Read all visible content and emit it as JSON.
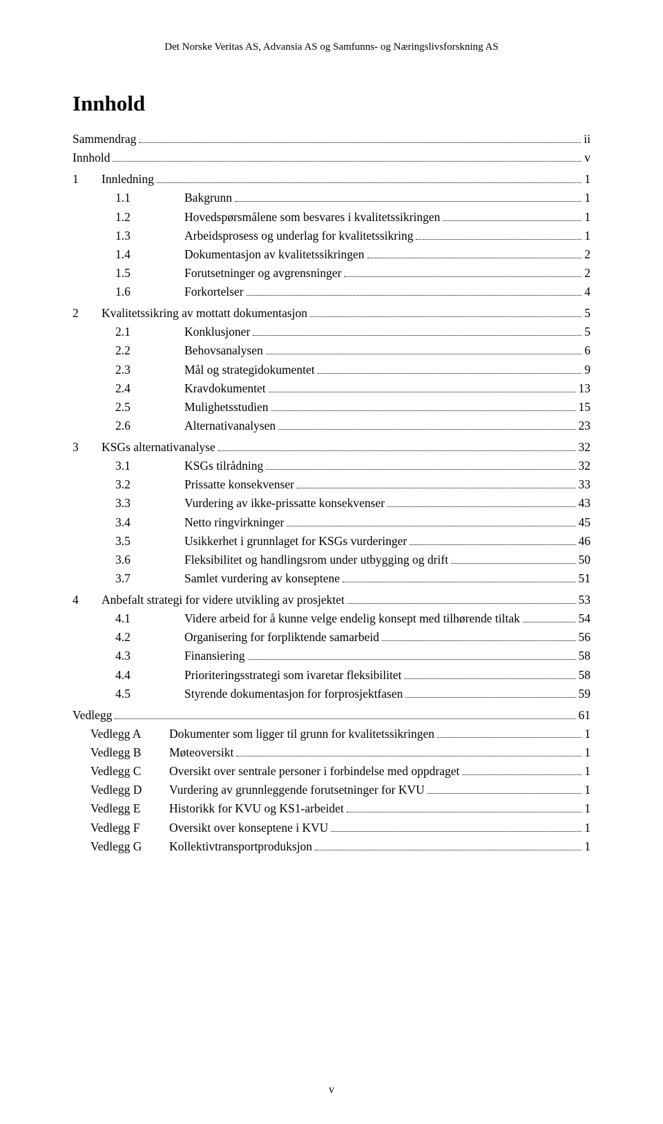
{
  "header": "Det Norske Veritas AS, Advansia AS og Samfunns- og Næringslivsforskning AS",
  "title": "Innhold",
  "footer": "v",
  "entries": [
    {
      "indent": "plain",
      "num": "",
      "label": "Sammendrag",
      "page": "ii"
    },
    {
      "indent": "plain",
      "num": "",
      "label": "Innhold",
      "page": "v"
    },
    {
      "indent": "0",
      "num": "1",
      "label": "Innledning",
      "page": "1"
    },
    {
      "indent": "1",
      "num": "1.1",
      "label": "Bakgrunn",
      "page": "1"
    },
    {
      "indent": "1",
      "num": "1.2",
      "label": "Hovedspørsmålene som besvares i kvalitetssikringen",
      "page": "1"
    },
    {
      "indent": "1",
      "num": "1.3",
      "label": "Arbeidsprosess og underlag for kvalitetssikring",
      "page": "1"
    },
    {
      "indent": "1",
      "num": "1.4",
      "label": "Dokumentasjon av kvalitetssikringen",
      "page": "2"
    },
    {
      "indent": "1",
      "num": "1.5",
      "label": "Forutsetninger og avgrensninger",
      "page": "2"
    },
    {
      "indent": "1",
      "num": "1.6",
      "label": "Forkortelser",
      "page": "4"
    },
    {
      "indent": "0",
      "num": "2",
      "label": "Kvalitetssikring av mottatt dokumentasjon",
      "page": "5"
    },
    {
      "indent": "1",
      "num": "2.1",
      "label": "Konklusjoner",
      "page": "5"
    },
    {
      "indent": "1",
      "num": "2.2",
      "label": "Behovsanalysen",
      "page": "6"
    },
    {
      "indent": "1",
      "num": "2.3",
      "label": "Mål og strategidokumentet",
      "page": "9"
    },
    {
      "indent": "1",
      "num": "2.4",
      "label": "Kravdokumentet",
      "page": "13"
    },
    {
      "indent": "1",
      "num": "2.5",
      "label": "Mulighetsstudien",
      "page": "15"
    },
    {
      "indent": "1",
      "num": "2.6",
      "label": "Alternativanalysen",
      "page": "23"
    },
    {
      "indent": "0",
      "num": "3",
      "label": "KSGs alternativanalyse",
      "page": "32"
    },
    {
      "indent": "1",
      "num": "3.1",
      "label": "KSGs tilrådning",
      "page": "32"
    },
    {
      "indent": "1",
      "num": "3.2",
      "label": "Prissatte konsekvenser",
      "page": "33"
    },
    {
      "indent": "1",
      "num": "3.3",
      "label": "Vurdering av ikke-prissatte konsekvenser",
      "page": "43"
    },
    {
      "indent": "1",
      "num": "3.4",
      "label": "Netto ringvirkninger",
      "page": "45"
    },
    {
      "indent": "1",
      "num": "3.5",
      "label": "Usikkerhet i grunnlaget for KSGs vurderinger",
      "page": "46"
    },
    {
      "indent": "1",
      "num": "3.6",
      "label": "Fleksibilitet og handlingsrom under utbygging og drift",
      "page": "50"
    },
    {
      "indent": "1",
      "num": "3.7",
      "label": "Samlet vurdering av konseptene",
      "page": "51"
    },
    {
      "indent": "0",
      "num": "4",
      "label": "Anbefalt strategi for videre utvikling av prosjektet",
      "page": "53"
    },
    {
      "indent": "1",
      "num": "4.1",
      "label": "Videre arbeid for å kunne velge endelig konsept med tilhørende tiltak",
      "page": "54"
    },
    {
      "indent": "1",
      "num": "4.2",
      "label": "Organisering for forpliktende samarbeid",
      "page": "56"
    },
    {
      "indent": "1",
      "num": "4.3",
      "label": "Finansiering",
      "page": "58"
    },
    {
      "indent": "1",
      "num": "4.4",
      "label": "Prioriteringsstrategi som ivaretar fleksibilitet",
      "page": "58"
    },
    {
      "indent": "1",
      "num": "4.5",
      "label": "Styrende dokumentasjon for forprosjektfasen",
      "page": "59"
    },
    {
      "indent": "plain",
      "num": "",
      "label": "Vedlegg",
      "page": "61"
    },
    {
      "indent": "appx",
      "num": "Vedlegg A",
      "label": "Dokumenter som ligger til grunn for kvalitetssikringen",
      "page": "1"
    },
    {
      "indent": "appx",
      "num": "Vedlegg B",
      "label": "Møteoversikt",
      "page": "1"
    },
    {
      "indent": "appx",
      "num": "Vedlegg C",
      "label": "Oversikt over sentrale personer i forbindelse med oppdraget",
      "page": "1"
    },
    {
      "indent": "appx",
      "num": "Vedlegg D",
      "label": "Vurdering av grunnleggende forutsetninger for KVU",
      "page": "1"
    },
    {
      "indent": "appx",
      "num": "Vedlegg E",
      "label": "Historikk for KVU og KS1-arbeidet",
      "page": "1"
    },
    {
      "indent": "appx",
      "num": "Vedlegg F",
      "label": "Oversikt over konseptene i KVU",
      "page": "1"
    },
    {
      "indent": "appx",
      "num": "Vedlegg G",
      "label": "Kollektivtransportproduksjon",
      "page": "1"
    }
  ]
}
